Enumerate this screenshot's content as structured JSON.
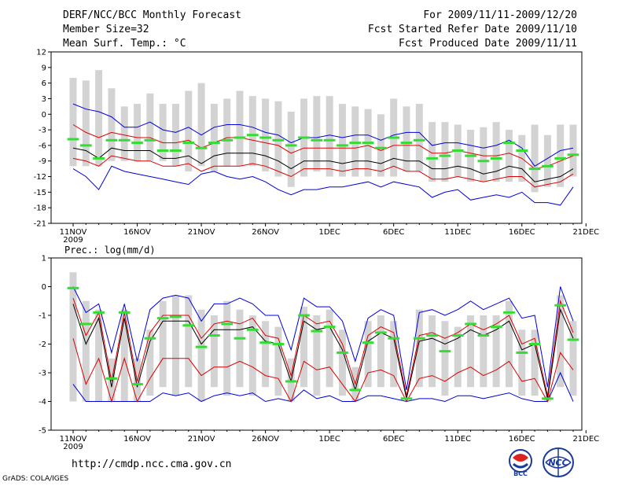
{
  "header": {
    "line1_left": "DERF/NCC/BCC Monthly Forecast",
    "line2_left": "Member Size=32",
    "line3_left": "Mean Surf. Temp.: °C",
    "line1_right": "For 2009/11/11-2009/12/20",
    "line2_right": "Fcst Started Refer Date 2009/11/10",
    "line3_right": "Fcst Produced Date 2009/11/11"
  },
  "footer": {
    "url": "http://cmdp.ncc.cma.gov.cn",
    "credit": "GrADS: COLA/IGES",
    "logo_left_text": "BCC",
    "logo_right_text": "NCC"
  },
  "colors": {
    "box": "#d3d3d3",
    "observation_marker": "#33dd33",
    "envelope": "#0000dd",
    "spread": "#dd0000",
    "mean": "#000000"
  },
  "chart_data": [
    {
      "type": "box-ensemble",
      "title": "Mean Surf. Temp.: °C",
      "ylim": [
        -21,
        12
      ],
      "yticks": [
        12,
        9,
        6,
        3,
        0,
        -3,
        -6,
        -9,
        -12,
        -15,
        -18,
        -21
      ],
      "xticks": [
        "11NOV",
        "16NOV",
        "21NOV",
        "26NOV",
        "1DEC",
        "6DEC",
        "11DEC",
        "16DEC",
        "21DEC"
      ],
      "year_label": "2009",
      "days": 40,
      "box_top": [
        7,
        6.5,
        8.5,
        5,
        1.5,
        2,
        4,
        2,
        2,
        4.5,
        6,
        2,
        3,
        4.5,
        3.5,
        3,
        2.5,
        0.5,
        3,
        3.5,
        3.5,
        2,
        1.5,
        1,
        0,
        3,
        1.5,
        2,
        -1.5,
        -1.5,
        -2,
        -3,
        -2.5,
        -1.5,
        -3,
        -4,
        -2,
        -4,
        -2,
        -2
      ],
      "box_bottom": [
        -10,
        -10,
        -10,
        -9,
        -9,
        -9,
        -9,
        -9,
        -10,
        -11,
        -10,
        -11,
        -10,
        -10,
        -10,
        -11,
        -12,
        -14,
        -12,
        -11,
        -12,
        -12,
        -12,
        -12,
        -12,
        -12,
        -11,
        -11,
        -13,
        -13,
        -12,
        -13,
        -13,
        -13,
        -13,
        -13,
        -15,
        -14,
        -14,
        -12
      ],
      "obs": [
        -4.8,
        -6.0,
        -8.5,
        -5.0,
        -5.0,
        -5.5,
        -5.0,
        -7.0,
        -7.0,
        -5.5,
        -6.5,
        -5.5,
        -5.0,
        -4.5,
        -4.0,
        -4.5,
        -5.0,
        -6.0,
        -4.5,
        -5.0,
        -5.0,
        -6.0,
        -5.5,
        -5.5,
        -6.5,
        -4.5,
        -5.5,
        -5.0,
        -8.5,
        -8.0,
        -7.0,
        -8.0,
        -9.0,
        -8.5,
        -5.5,
        -7.0,
        -10.5,
        -10.0,
        -8.5,
        -7.8
      ],
      "mean": [
        -6.5,
        -7.0,
        -8.5,
        -6.5,
        -7.0,
        -7.0,
        -7.0,
        -8.5,
        -8.5,
        -8.0,
        -9.5,
        -8.0,
        -7.5,
        -7.5,
        -7.5,
        -8.0,
        -9.0,
        -10.5,
        -9.0,
        -9.0,
        -9.0,
        -9.5,
        -9.0,
        -9.0,
        -9.5,
        -8.5,
        -9.0,
        -9.0,
        -10.5,
        -10.5,
        -10.0,
        -10.5,
        -11.5,
        -11.0,
        -10.0,
        -10.5,
        -13.0,
        -12.5,
        -12.0,
        -10.5
      ],
      "spread_upper": [
        -2.0,
        -3.5,
        -4.5,
        -3.5,
        -4.0,
        -4.5,
        -4.5,
        -5.5,
        -5.5,
        -5.0,
        -6.5,
        -5.5,
        -4.5,
        -4.5,
        -5.0,
        -5.5,
        -6.0,
        -7.5,
        -6.5,
        -6.5,
        -6.5,
        -6.5,
        -6.5,
        -6.0,
        -7.0,
        -6.0,
        -6.0,
        -6.0,
        -7.5,
        -7.5,
        -7.0,
        -7.5,
        -8.0,
        -8.0,
        -7.5,
        -8.5,
        -10.5,
        -10.0,
        -9.0,
        -8.0
      ],
      "spread_lower": [
        -8.5,
        -9.0,
        -10.0,
        -8.0,
        -8.5,
        -9.0,
        -9.0,
        -10.0,
        -10.0,
        -9.5,
        -11.0,
        -10.0,
        -10.0,
        -10.0,
        -9.5,
        -10.0,
        -11.0,
        -12.0,
        -10.5,
        -10.5,
        -10.5,
        -11.0,
        -10.5,
        -10.5,
        -11.0,
        -10.0,
        -11.0,
        -11.0,
        -12.5,
        -12.5,
        -12.0,
        -12.5,
        -13.0,
        -12.5,
        -12.0,
        -12.0,
        -14.0,
        -13.5,
        -13.0,
        -11.5
      ],
      "envelope_upper": [
        2.0,
        1.0,
        0.5,
        -0.5,
        -2.5,
        -2.5,
        -1.5,
        -3.0,
        -3.5,
        -2.5,
        -4.0,
        -2.5,
        -2.0,
        -2.0,
        -2.5,
        -3.5,
        -4.0,
        -5.5,
        -4.5,
        -4.5,
        -4.0,
        -4.5,
        -4.0,
        -4.0,
        -5.0,
        -4.0,
        -3.5,
        -3.5,
        -6.0,
        -5.5,
        -5.5,
        -6.0,
        -6.5,
        -6.0,
        -5.0,
        -6.5,
        -10.0,
        -8.5,
        -7.0,
        -6.5
      ],
      "envelope_lower": [
        -10.5,
        -12.0,
        -14.5,
        -10.0,
        -11.0,
        -11.5,
        -12.0,
        -12.5,
        -13.0,
        -13.5,
        -11.5,
        -11.0,
        -12.0,
        -12.5,
        -12.0,
        -13.0,
        -14.5,
        -15.5,
        -14.5,
        -14.5,
        -14.0,
        -14.0,
        -13.5,
        -13.0,
        -14.0,
        -13.0,
        -13.5,
        -14.0,
        -16.0,
        -15.0,
        -14.5,
        -16.5,
        -16.0,
        -15.5,
        -16.0,
        -15.0,
        -17.0,
        -17.0,
        -17.5,
        -14.0
      ]
    },
    {
      "type": "box-ensemble",
      "title": "Prec.: log(mm/d)",
      "ylim": [
        -5,
        1
      ],
      "yticks": [
        1,
        0,
        -1,
        -2,
        -3,
        -4,
        -5
      ],
      "xticks": [
        "11NOV",
        "16NOV",
        "21NOV",
        "26NOV",
        "1DEC",
        "6DEC",
        "11DEC",
        "16DEC",
        "21DEC"
      ],
      "year_label": "2009",
      "days": 40,
      "box_top": [
        0.5,
        -0.5,
        -0.8,
        -2.5,
        -0.8,
        -2.5,
        -1.5,
        -0.5,
        -0.3,
        -0.3,
        -0.8,
        -1.0,
        -0.5,
        -0.8,
        -1.0,
        -1.2,
        -1.4,
        -2.5,
        -0.7,
        -1.0,
        -0.8,
        -1.5,
        -2.8,
        -1.2,
        -1.0,
        -1.2,
        -4.0,
        -0.8,
        -1.0,
        -1.2,
        -1.4,
        -1.0,
        -1.0,
        -1.0,
        -0.5,
        -1.5,
        -1.5,
        -3.8,
        -0.3,
        -1.2
      ],
      "box_bottom": [
        -4.0,
        -4.0,
        -4.0,
        -4.0,
        -4.0,
        -4.0,
        -3.8,
        -3.5,
        -3.8,
        -3.5,
        -4.0,
        -3.5,
        -3.8,
        -3.5,
        -3.8,
        -3.5,
        -3.8,
        -4.0,
        -3.5,
        -3.8,
        -3.5,
        -3.8,
        -4.0,
        -3.5,
        -3.5,
        -3.5,
        -4.0,
        -3.5,
        -3.5,
        -3.8,
        -3.5,
        -3.5,
        -3.5,
        -3.5,
        -3.5,
        -3.8,
        -3.8,
        -4.0,
        -3.5,
        -3.8
      ],
      "obs": [
        -0.05,
        -1.3,
        -0.9,
        -3.2,
        -0.9,
        -3.4,
        -1.8,
        -1.1,
        -1.05,
        -1.35,
        -2.1,
        -1.7,
        -1.3,
        -1.8,
        -1.5,
        -1.95,
        -2.0,
        -3.3,
        -1.0,
        -1.55,
        -1.4,
        -2.3,
        -3.6,
        -1.95,
        -1.6,
        -1.8,
        -3.9,
        -1.8,
        -1.7,
        -2.25,
        -1.7,
        -1.3,
        -1.7,
        -1.4,
        -0.9,
        -2.3,
        -2.0,
        -3.9,
        -0.65,
        -1.85
      ],
      "mean": [
        -0.6,
        -2.0,
        -1.1,
        -3.5,
        -1.1,
        -3.5,
        -1.9,
        -1.2,
        -1.2,
        -1.2,
        -2.0,
        -1.5,
        -1.5,
        -1.5,
        -1.4,
        -1.9,
        -2.0,
        -3.3,
        -1.2,
        -1.5,
        -1.4,
        -2.2,
        -3.6,
        -1.9,
        -1.6,
        -1.8,
        -3.9,
        -1.9,
        -1.8,
        -2.0,
        -1.8,
        -1.5,
        -1.7,
        -1.5,
        -1.2,
        -2.2,
        -2.0,
        -3.9,
        -0.8,
        -1.8
      ],
      "spread_upper": [
        -0.4,
        -1.7,
        -0.9,
        -3.3,
        -0.9,
        -3.3,
        -1.6,
        -1.0,
        -1.0,
        -1.0,
        -1.8,
        -1.3,
        -1.2,
        -1.3,
        -1.1,
        -1.7,
        -1.8,
        -3.1,
        -1.0,
        -1.3,
        -1.2,
        -2.0,
        -3.4,
        -1.7,
        -1.4,
        -1.6,
        -3.8,
        -1.7,
        -1.6,
        -1.8,
        -1.6,
        -1.3,
        -1.5,
        -1.3,
        -1.0,
        -2.0,
        -1.8,
        -3.8,
        -0.5,
        -1.6
      ],
      "spread_lower": [
        -1.8,
        -3.4,
        -2.5,
        -4.0,
        -2.5,
        -4.0,
        -3.2,
        -2.5,
        -2.5,
        -2.5,
        -3.1,
        -2.8,
        -2.8,
        -2.6,
        -2.8,
        -3.1,
        -3.2,
        -4.0,
        -2.6,
        -2.9,
        -2.8,
        -3.4,
        -4.0,
        -3.0,
        -2.9,
        -3.1,
        -4.0,
        -3.2,
        -3.1,
        -3.3,
        -3.0,
        -2.8,
        -3.1,
        -2.9,
        -2.6,
        -3.3,
        -3.2,
        -4.0,
        -2.3,
        -2.9
      ],
      "envelope_upper": [
        0.0,
        -0.9,
        -0.6,
        -2.3,
        -0.6,
        -2.6,
        -0.8,
        -0.4,
        -0.3,
        -0.4,
        -1.2,
        -0.6,
        -0.6,
        -0.4,
        -0.6,
        -1.0,
        -1.0,
        -2.2,
        -0.4,
        -0.7,
        -0.7,
        -1.2,
        -2.6,
        -1.1,
        -0.8,
        -1.0,
        -3.6,
        -0.9,
        -0.8,
        -1.0,
        -0.8,
        -0.5,
        -0.8,
        -0.6,
        -0.4,
        -1.1,
        -1.0,
        -3.5,
        0.0,
        -1.2
      ],
      "envelope_lower": [
        -3.4,
        -4.0,
        -4.0,
        -4.0,
        -4.0,
        -4.0,
        -4.0,
        -3.7,
        -3.8,
        -3.7,
        -4.0,
        -3.8,
        -3.7,
        -3.8,
        -3.7,
        -4.0,
        -3.9,
        -4.0,
        -3.6,
        -3.9,
        -3.8,
        -4.0,
        -4.0,
        -3.8,
        -3.8,
        -3.9,
        -4.0,
        -3.9,
        -3.9,
        -4.0,
        -3.8,
        -3.8,
        -3.9,
        -3.8,
        -3.7,
        -3.9,
        -4.0,
        -4.0,
        -3.0,
        -4.0
      ]
    }
  ]
}
